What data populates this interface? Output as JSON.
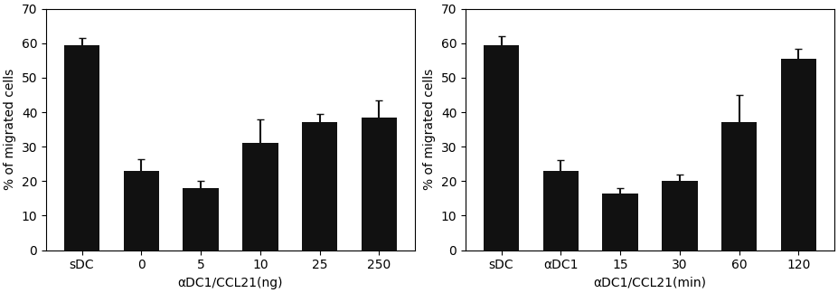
{
  "chart_data": [
    {
      "type": "bar",
      "categories": [
        "sDC",
        "0",
        "5",
        "10",
        "25",
        "250"
      ],
      "values": [
        59.5,
        23.0,
        18.0,
        31.0,
        37.0,
        38.5
      ],
      "errors": [
        2.0,
        3.5,
        2.0,
        7.0,
        2.5,
        5.0
      ],
      "xlabel": "αDC1/CCL21(ng)",
      "ylabel": "% of migrated cells",
      "ylim": [
        0,
        70
      ],
      "yticks": [
        0,
        10,
        20,
        30,
        40,
        50,
        60,
        70
      ],
      "color": "#111111"
    },
    {
      "type": "bar",
      "categories": [
        "sDC",
        "αDC1",
        "15",
        "30",
        "60",
        "120"
      ],
      "values": [
        59.5,
        23.0,
        16.5,
        20.0,
        37.0,
        55.5
      ],
      "errors": [
        2.5,
        3.0,
        1.5,
        2.0,
        8.0,
        3.0
      ],
      "xlabel": "αDC1/CCL21(min)",
      "ylabel": "% of migrated cells",
      "ylim": [
        0,
        70
      ],
      "yticks": [
        0,
        10,
        20,
        30,
        40,
        50,
        60,
        70
      ],
      "color": "#111111"
    }
  ]
}
